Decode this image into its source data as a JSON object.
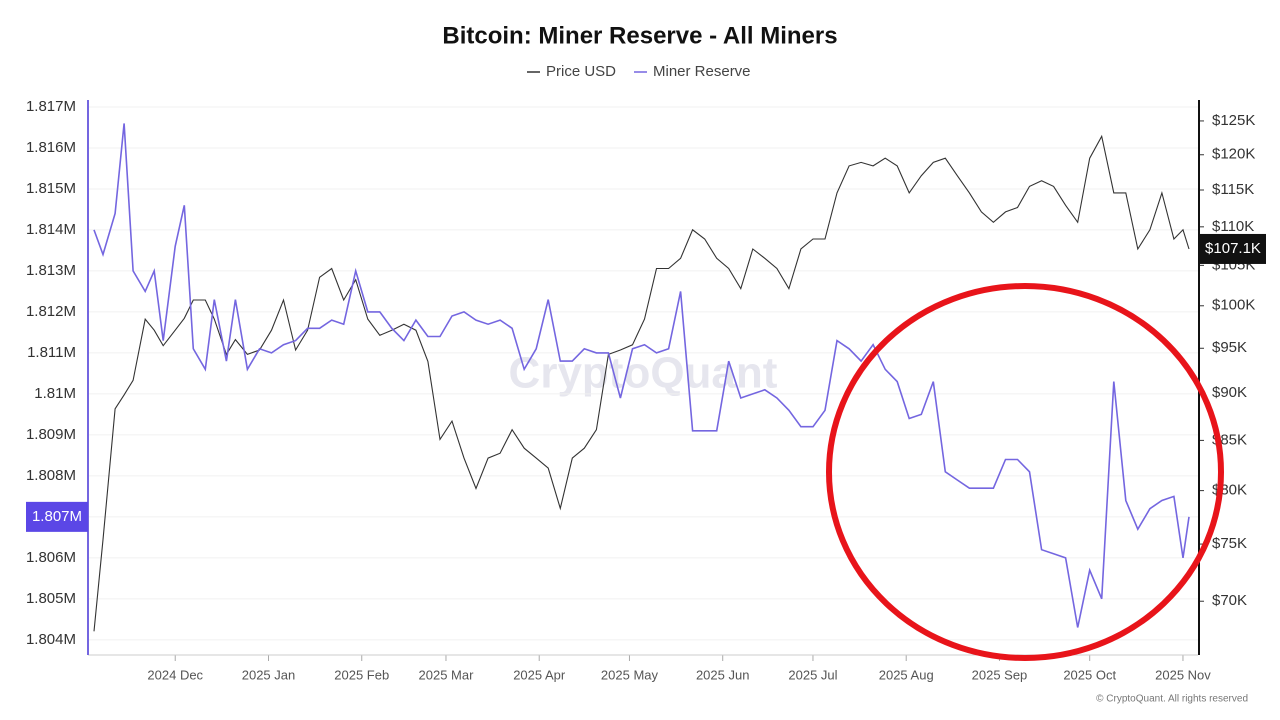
{
  "chart_data": {
    "type": "line",
    "title": "Bitcoin: Miner Reserve - All Miners",
    "watermark": "CryptoQuant",
    "footer": "© CryptoQuant. All rights reserved",
    "xlim": [
      -29,
      340
    ],
    "xticks": [
      {
        "value": 0,
        "label": "2024 Dec"
      },
      {
        "value": 31,
        "label": "2025 Jan"
      },
      {
        "value": 62,
        "label": "2025 Feb"
      },
      {
        "value": 90,
        "label": "2025 Mar"
      },
      {
        "value": 121,
        "label": "2025 Apr"
      },
      {
        "value": 151,
        "label": "2025 May"
      },
      {
        "value": 182,
        "label": "2025 Jun"
      },
      {
        "value": 212,
        "label": "2025 Jul"
      },
      {
        "value": 243,
        "label": "2025 Aug"
      },
      {
        "value": 274,
        "label": "2025 Sep"
      },
      {
        "value": 304,
        "label": "2025 Oct"
      },
      {
        "value": 335,
        "label": "2025 Nov"
      }
    ],
    "ylim": [
      1803630,
      1817170
    ],
    "yticks": [
      {
        "value": 1817000,
        "label": "1.817M"
      },
      {
        "value": 1816000,
        "label": "1.816M"
      },
      {
        "value": 1815000,
        "label": "1.815M"
      },
      {
        "value": 1814000,
        "label": "1.814M"
      },
      {
        "value": 1813000,
        "label": "1.813M"
      },
      {
        "value": 1812000,
        "label": "1.812M"
      },
      {
        "value": 1811000,
        "label": "1.811M"
      },
      {
        "value": 1810000,
        "label": "1.81M"
      },
      {
        "value": 1809000,
        "label": "1.809M"
      },
      {
        "value": 1808000,
        "label": "1.808M"
      },
      {
        "value": 1807000,
        "label": "1.807M"
      },
      {
        "value": 1806000,
        "label": "1.806M"
      },
      {
        "value": 1805000,
        "label": "1.805M"
      },
      {
        "value": 1804000,
        "label": "1.804M"
      }
    ],
    "y2lim": [
      65600,
      128200
    ],
    "y2log": true,
    "y2ticks": [
      {
        "value": 125000,
        "label": "$125K"
      },
      {
        "value": 120000,
        "label": "$120K"
      },
      {
        "value": 115000,
        "label": "$115K"
      },
      {
        "value": 110000,
        "label": "$110K"
      },
      {
        "value": 105000,
        "label": "$105K"
      },
      {
        "value": 100000,
        "label": "$100K"
      },
      {
        "value": 95000,
        "label": "$95K"
      },
      {
        "value": 90000,
        "label": "$90K"
      },
      {
        "value": 85000,
        "label": "$85K"
      },
      {
        "value": 80000,
        "label": "$80K"
      },
      {
        "value": 75000,
        "label": "$75K"
      },
      {
        "value": 70000,
        "label": "$70K"
      }
    ],
    "grid": true,
    "legend": "top",
    "x": [
      -27,
      -24,
      -20,
      -17,
      -14,
      -10,
      -7,
      -4,
      0,
      3,
      6,
      10,
      13,
      17,
      20,
      24,
      28,
      32,
      36,
      40,
      44,
      48,
      52,
      56,
      60,
      64,
      68,
      72,
      76,
      80,
      84,
      88,
      92,
      96,
      100,
      104,
      108,
      112,
      116,
      120,
      124,
      128,
      132,
      136,
      140,
      144,
      148,
      152,
      156,
      160,
      164,
      168,
      172,
      176,
      180,
      184,
      188,
      192,
      196,
      200,
      204,
      208,
      212,
      216,
      220,
      224,
      228,
      232,
      236,
      240,
      244,
      248,
      252,
      256,
      260,
      264,
      268,
      272,
      276,
      280,
      284,
      288,
      292,
      296,
      300,
      304,
      308,
      312,
      316,
      320,
      324,
      328,
      332,
      335,
      337
    ],
    "series": [
      {
        "name": "Price USD",
        "color": "#333333",
        "axis": "y2",
        "current_label": "$107.1K",
        "values": [
          67500,
          75400,
          88300,
          89800,
          91400,
          98400,
          97100,
          95300,
          97100,
          98500,
          100700,
          100700,
          98400,
          94300,
          96000,
          94300,
          94800,
          97100,
          100700,
          94800,
          97100,
          103500,
          104600,
          100700,
          103200,
          98400,
          96500,
          97100,
          97800,
          97100,
          93500,
          85100,
          87000,
          83200,
          80200,
          83200,
          83700,
          86100,
          84200,
          83200,
          82200,
          78300,
          83200,
          84200,
          86100,
          94300,
          94800,
          95400,
          98400,
          104600,
          104600,
          105900,
          109600,
          108400,
          105900,
          104600,
          102100,
          107100,
          105900,
          104600,
          102100,
          107100,
          108400,
          108400,
          114600,
          118400,
          118900,
          118400,
          119500,
          118400,
          114600,
          117000,
          118900,
          119500,
          117000,
          114600,
          112000,
          110600,
          112000,
          112600,
          115500,
          116300,
          115500,
          112900,
          110600,
          119500,
          122700,
          114600,
          114600,
          107100,
          109600,
          114600,
          108400,
          109600,
          107100
        ]
      },
      {
        "name": "Miner Reserve",
        "color": "#7466e0",
        "axis": "y",
        "current_label": "1.807M",
        "values": [
          1814000,
          1813400,
          1814400,
          1816600,
          1813000,
          1812500,
          1813000,
          1811300,
          1813600,
          1814600,
          1811100,
          1810600,
          1812300,
          1810800,
          1812300,
          1810600,
          1811100,
          1811000,
          1811200,
          1811300,
          1811600,
          1811600,
          1811800,
          1811700,
          1813000,
          1812000,
          1812000,
          1811600,
          1811300,
          1811800,
          1811400,
          1811400,
          1811900,
          1812000,
          1811800,
          1811700,
          1811800,
          1811600,
          1810600,
          1811100,
          1812300,
          1810800,
          1810800,
          1811100,
          1811000,
          1811000,
          1809900,
          1811100,
          1811200,
          1811000,
          1811100,
          1812500,
          1809100,
          1809100,
          1809100,
          1810800,
          1809900,
          1810000,
          1810100,
          1809900,
          1809600,
          1809200,
          1809200,
          1809600,
          1811300,
          1811100,
          1810800,
          1811200,
          1810600,
          1810300,
          1809400,
          1809500,
          1810300,
          1808100,
          1807900,
          1807700,
          1807700,
          1807700,
          1808400,
          1808400,
          1808100,
          1806200,
          1806100,
          1806000,
          1804300,
          1805700,
          1805000,
          1810300,
          1807400,
          1806700,
          1807200,
          1807400,
          1807500,
          1806000,
          1807000
        ]
      }
    ]
  }
}
